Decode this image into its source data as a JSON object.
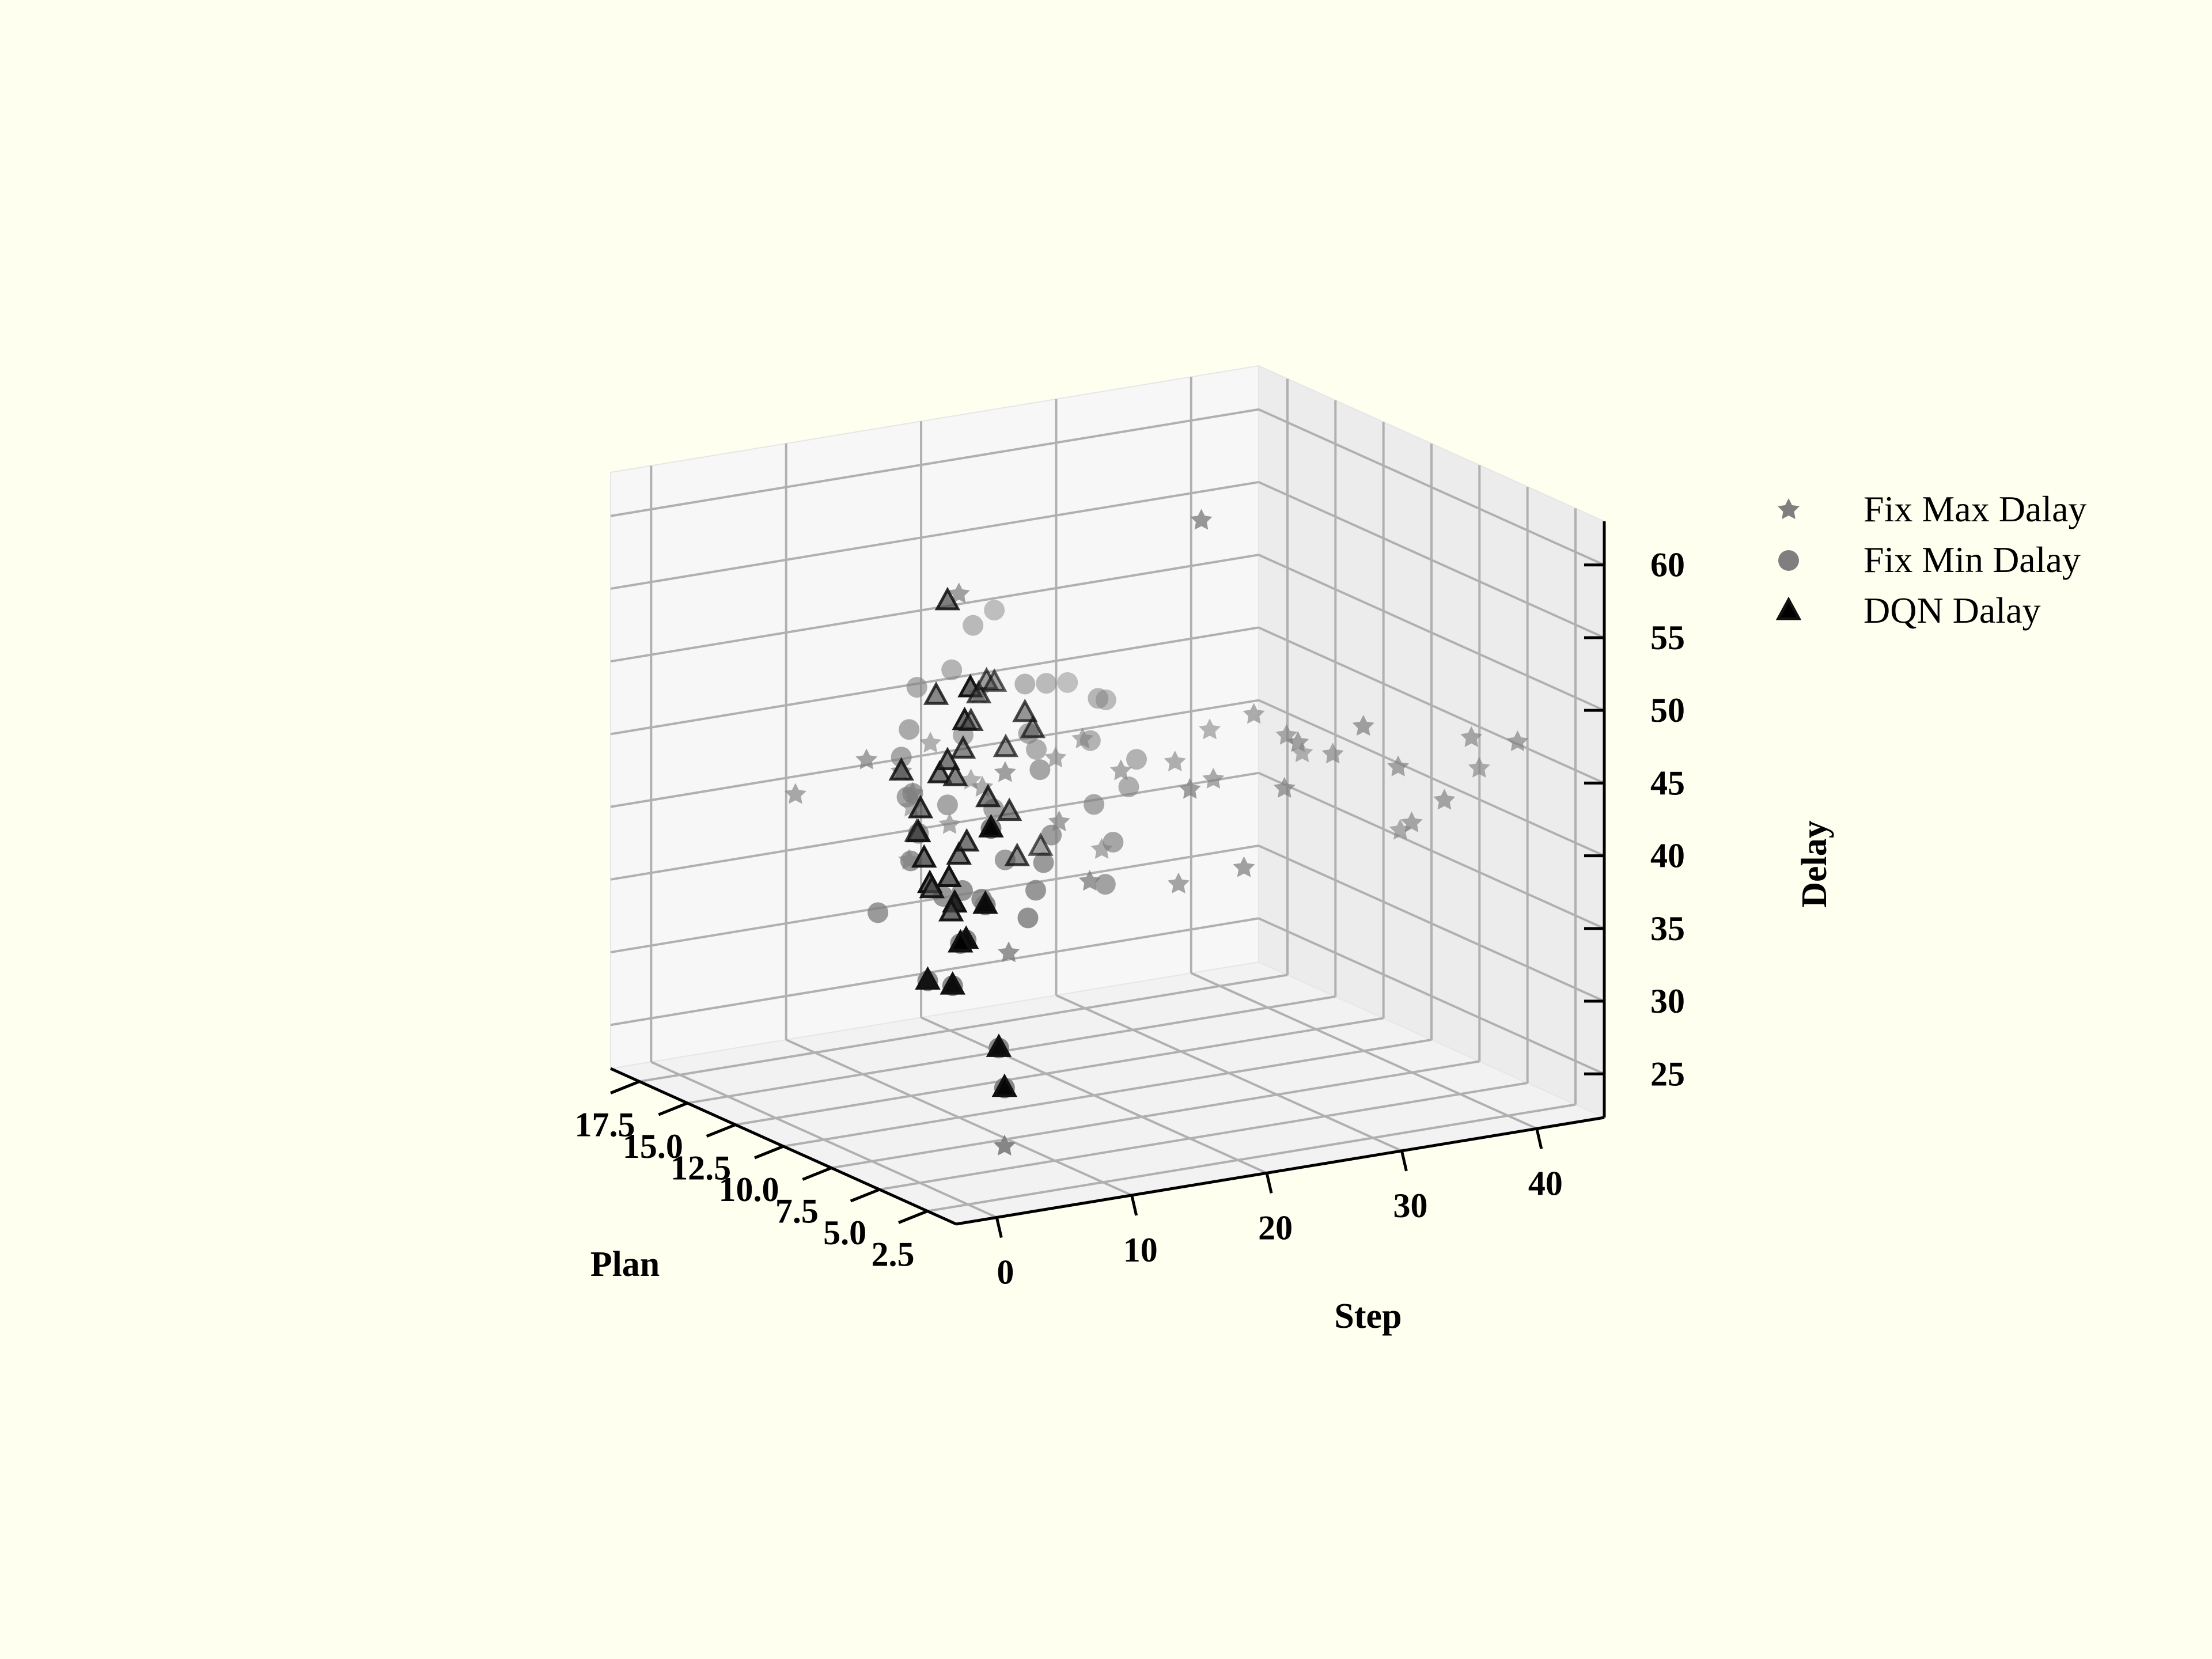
{
  "chart_data": {
    "type": "scatter",
    "projection": "3d",
    "xlabel": "Plan",
    "ylabel": "Step",
    "zlabel": "Delay",
    "xticks": [
      "2.5",
      "5.0",
      "7.5",
      "10.0",
      "12.5",
      "15.0",
      "17.5"
    ],
    "yticks": [
      "0",
      "10",
      "20",
      "30",
      "40"
    ],
    "zticks": [
      "25",
      "30",
      "35",
      "40",
      "45",
      "50",
      "55",
      "60"
    ],
    "xlim": [
      1,
      19
    ],
    "ylim": [
      -3,
      45
    ],
    "zlim": [
      22,
      63
    ],
    "grid": true,
    "legend_position": "top-right",
    "legend": [
      "Fix Max Dalay",
      "Fix Min Dalay",
      "DQN Dalay"
    ],
    "series": [
      {
        "name": "Fix Max Dalay",
        "marker": "star",
        "color": "#7f7f7f",
        "points": [
          [
            3,
            18,
            66
          ],
          [
            2,
            2,
            26
          ],
          [
            10,
            10,
            58
          ],
          [
            6,
            8,
            36
          ],
          [
            5,
            24,
            40
          ],
          [
            11,
            22,
            38
          ],
          [
            3,
            30,
            50
          ],
          [
            12,
            20,
            44
          ],
          [
            9,
            12,
            46
          ],
          [
            4,
            35,
            42
          ],
          [
            3,
            38,
            48
          ],
          [
            14,
            15,
            39
          ],
          [
            8,
            26,
            44
          ],
          [
            5,
            28,
            48
          ],
          [
            16,
            20,
            46
          ],
          [
            12,
            22,
            45
          ],
          [
            15,
            18,
            41
          ],
          [
            7,
            22,
            38
          ],
          [
            6,
            32,
            46
          ],
          [
            13,
            10,
            44
          ],
          [
            10,
            22,
            44
          ],
          [
            15,
            15,
            44
          ],
          [
            9,
            16,
            42
          ],
          [
            12,
            6,
            46
          ],
          [
            15,
            5,
            42
          ],
          [
            6,
            14,
            40
          ],
          [
            4,
            34,
            46
          ],
          [
            4,
            40,
            45
          ],
          [
            2,
            40,
            48
          ],
          [
            3,
            36,
            44
          ],
          [
            5,
            27,
            45
          ],
          [
            8,
            29,
            48
          ],
          [
            7,
            30,
            47
          ],
          [
            11,
            30,
            45
          ],
          [
            16,
            15,
            39
          ],
          [
            13,
            16,
            42
          ],
          [
            14,
            12,
            37
          ],
          [
            11,
            8,
            44
          ],
          [
            9,
            34,
            44
          ],
          [
            5,
            20,
            46
          ],
          [
            10,
            26,
            44
          ],
          [
            6,
            37,
            40
          ]
        ]
      },
      {
        "name": "Fix Min Dalay",
        "marker": "circle",
        "color": "#7f7f7f",
        "points": [
          [
            2,
            1,
            48
          ],
          [
            3,
            2,
            42
          ],
          [
            4,
            2,
            39
          ],
          [
            5,
            3,
            38
          ],
          [
            6,
            2,
            35
          ],
          [
            4,
            1,
            36
          ],
          [
            2,
            2,
            30
          ],
          [
            3,
            3,
            32
          ],
          [
            7,
            6,
            40
          ],
          [
            8,
            6,
            39
          ],
          [
            9,
            5,
            41
          ],
          [
            10,
            7,
            42
          ],
          [
            11,
            8,
            44
          ],
          [
            12,
            9,
            43
          ],
          [
            13,
            10,
            45
          ],
          [
            14,
            12,
            46
          ],
          [
            15,
            14,
            48
          ],
          [
            16,
            18,
            48
          ],
          [
            17,
            21,
            50
          ],
          [
            18,
            24,
            50
          ],
          [
            14,
            16,
            45
          ],
          [
            12,
            18,
            46
          ],
          [
            10,
            20,
            42
          ],
          [
            11,
            14,
            42
          ],
          [
            9,
            12,
            40
          ],
          [
            13,
            20,
            44
          ],
          [
            8,
            14,
            42
          ],
          [
            7,
            12,
            41
          ],
          [
            6,
            10,
            40
          ],
          [
            5,
            8,
            39
          ],
          [
            15,
            22,
            47
          ],
          [
            14,
            26,
            46
          ],
          [
            16,
            25,
            46
          ],
          [
            10,
            16,
            45
          ],
          [
            12,
            12,
            42
          ],
          [
            9,
            20,
            40
          ],
          [
            8,
            18,
            38
          ],
          [
            11,
            24,
            42
          ],
          [
            6,
            6,
            40
          ],
          [
            17,
            28,
            45
          ],
          [
            13,
            24,
            44
          ],
          [
            12,
            26,
            43
          ],
          [
            15,
            28,
            45
          ],
          [
            10,
            4,
            37
          ]
        ]
      },
      {
        "name": "DQN Dalay",
        "marker": "triangle",
        "color": "#000000",
        "points": [
          [
            2,
            1,
            48
          ],
          [
            3,
            2,
            42
          ],
          [
            4,
            2,
            39
          ],
          [
            5,
            3,
            38
          ],
          [
            6,
            2,
            35
          ],
          [
            4,
            1,
            36
          ],
          [
            2,
            2,
            30
          ],
          [
            3,
            3,
            32
          ],
          [
            6,
            4,
            40
          ],
          [
            7,
            5,
            41
          ],
          [
            8,
            5,
            40
          ],
          [
            9,
            6,
            41
          ],
          [
            10,
            7,
            42
          ],
          [
            10,
            8,
            38
          ],
          [
            8,
            8,
            53
          ],
          [
            9,
            9,
            50
          ],
          [
            12,
            12,
            56
          ],
          [
            11,
            10,
            45
          ],
          [
            12,
            12,
            45
          ],
          [
            13,
            14,
            43
          ],
          [
            12,
            15,
            42
          ],
          [
            14,
            16,
            44
          ],
          [
            15,
            18,
            45
          ],
          [
            16,
            20,
            46
          ],
          [
            17,
            22,
            46
          ],
          [
            18,
            24,
            45
          ],
          [
            16,
            24,
            43
          ],
          [
            15,
            22,
            45
          ],
          [
            13,
            18,
            40
          ],
          [
            14,
            20,
            36
          ],
          [
            10,
            10,
            40
          ],
          [
            11,
            12,
            40
          ],
          [
            12,
            10,
            42
          ],
          [
            15,
            14,
            38
          ],
          [
            13,
            10,
            44
          ],
          [
            14,
            14,
            48
          ],
          [
            17,
            26,
            34
          ],
          [
            16,
            22,
            42
          ],
          [
            9,
            8,
            37
          ]
        ]
      }
    ]
  }
}
